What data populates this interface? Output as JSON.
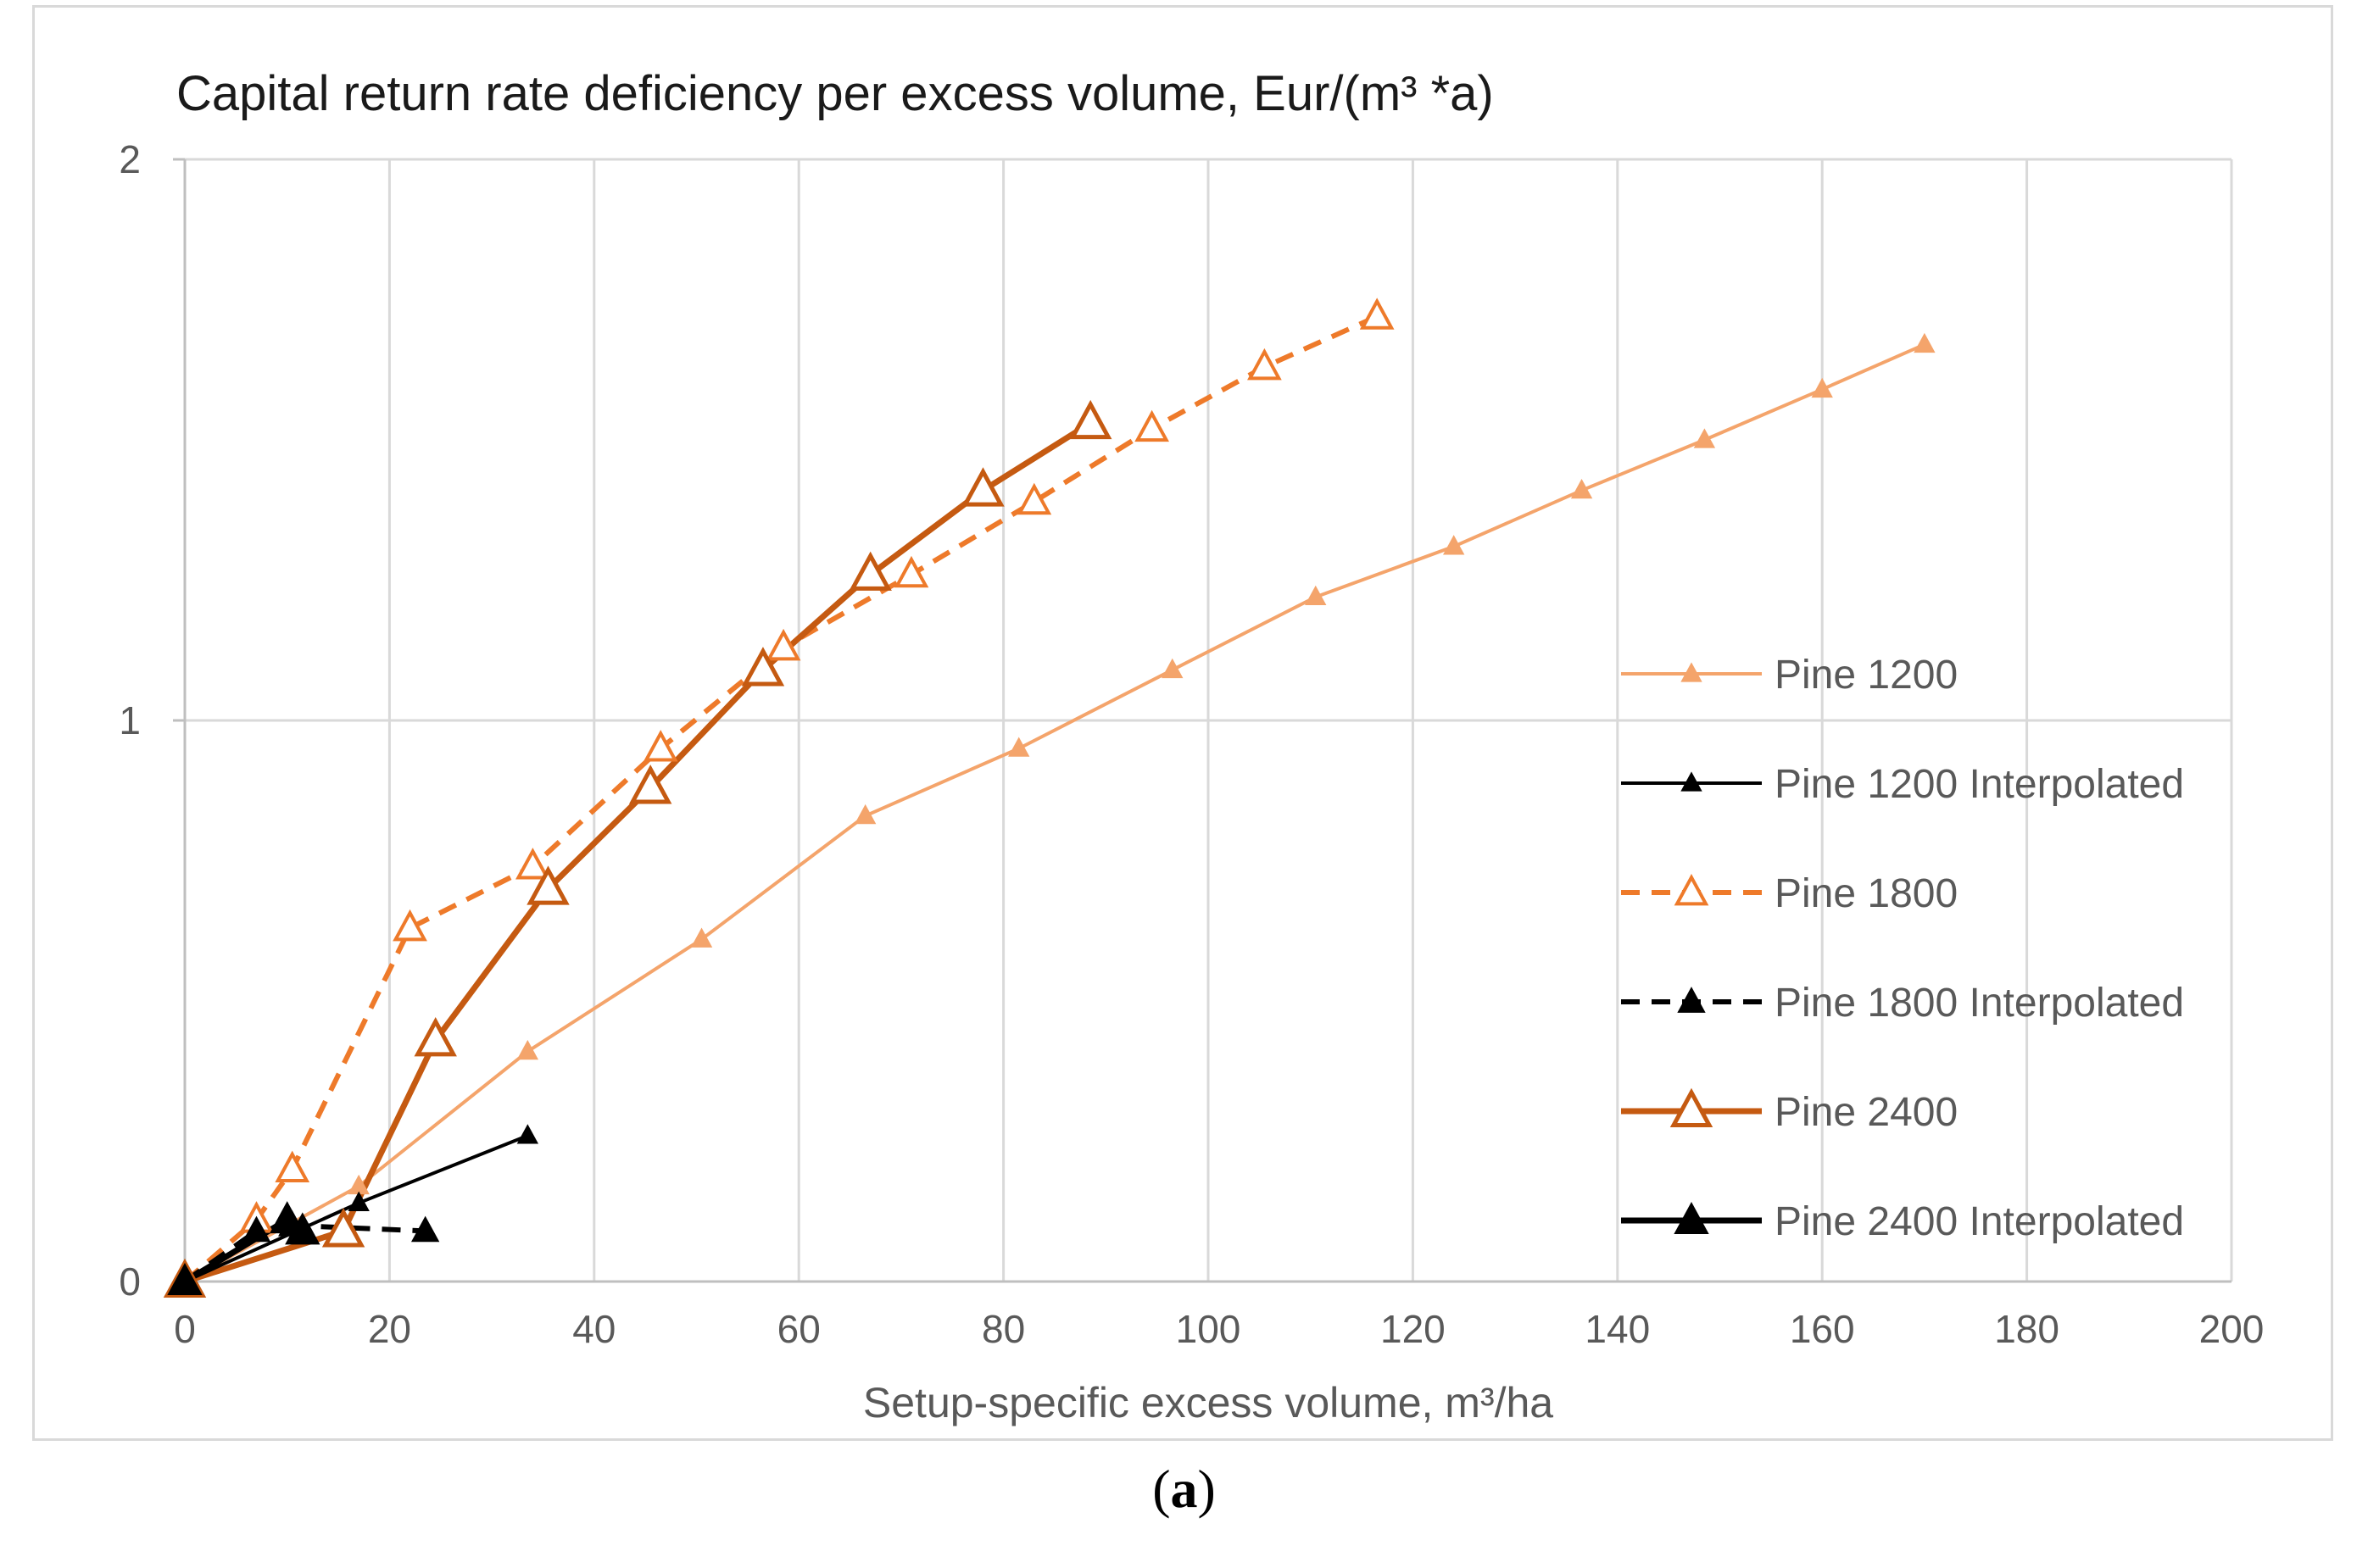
{
  "chart_data": {
    "type": "line",
    "title": "Capital return rate deficiency per excess volume,  Eur/(m³ *a)",
    "xlabel": "Setup-specific excess volume, m³/ha",
    "ylabel": "",
    "xlim": [
      0,
      200
    ],
    "ylim": [
      0,
      2
    ],
    "xticks": [
      0,
      20,
      40,
      60,
      80,
      100,
      120,
      140,
      160,
      180,
      200
    ],
    "yticks": [
      0,
      1,
      2
    ],
    "grid": true,
    "legend_position": "right",
    "series": [
      {
        "name": "Pine 1200",
        "color": "#f4a46b",
        "dash": "solid",
        "marker": "triangle-filled-small",
        "x": [
          0,
          17,
          33.5,
          50.5,
          66.5,
          81.5,
          96.5,
          110.5,
          124,
          136.5,
          148.5,
          160,
          170
        ],
        "y": [
          0,
          0.17,
          0.41,
          0.61,
          0.83,
          0.95,
          1.09,
          1.22,
          1.31,
          1.41,
          1.5,
          1.59,
          1.67
        ]
      },
      {
        "name": "Pine 1200 Interpolated",
        "color": "#000000",
        "dash": "solid",
        "marker": "triangle-filled-small",
        "x": [
          0,
          17,
          33.5
        ],
        "y": [
          0,
          0.14,
          0.26
        ]
      },
      {
        "name": "Pine 1800",
        "color": "#ee7a2a",
        "dash": "dashed",
        "marker": "triangle-open",
        "x": [
          0,
          7,
          10.5,
          22,
          34,
          46.5,
          58.5,
          71,
          83,
          94.5,
          105.5,
          116.5
        ],
        "y": [
          0,
          0.11,
          0.2,
          0.63,
          0.74,
          0.95,
          1.13,
          1.26,
          1.39,
          1.52,
          1.63,
          1.72
        ]
      },
      {
        "name": "Pine 1800 Interpolated",
        "color": "#000000",
        "dash": "dashed",
        "marker": "triangle-filled",
        "x": [
          0,
          7,
          10.5,
          23.5
        ],
        "y": [
          0,
          0.09,
          0.1,
          0.09
        ]
      },
      {
        "name": "Pine 2400",
        "color": "#c55a11",
        "dash": "solid",
        "marker": "triangle-open-large",
        "x": [
          0,
          15.5,
          24.5,
          35.5,
          45.5,
          56.5,
          67,
          78,
          88.5
        ],
        "y": [
          0,
          0.09,
          0.43,
          0.7,
          0.88,
          1.09,
          1.26,
          1.41,
          1.53
        ]
      },
      {
        "name": "Pine 2400 Interpolated",
        "color": "#000000",
        "dash": "solid",
        "marker": "triangle-filled-large",
        "x": [
          0,
          10,
          11.5
        ],
        "y": [
          0,
          0.11,
          0.09
        ]
      }
    ]
  },
  "panel_label": "(a)",
  "panel_label_letter": "a"
}
